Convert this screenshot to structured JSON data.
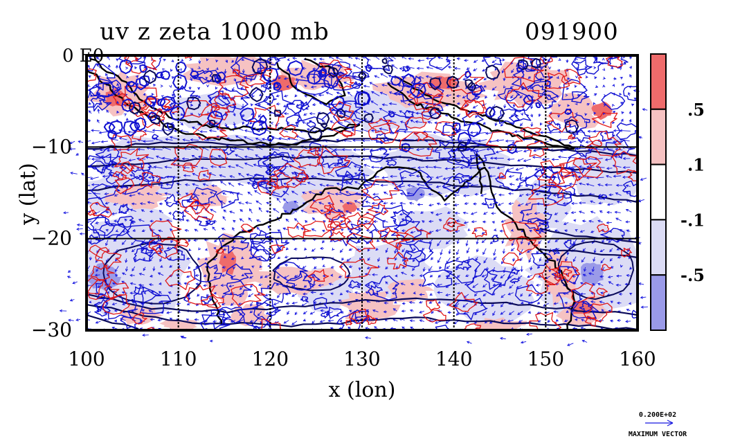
{
  "header": {
    "title": "uv z zeta 1000 mb",
    "timestamp": "091900",
    "corner_tag": "0 E0"
  },
  "chart_data": {
    "type": "heatmap",
    "subtype": "shaded-contour-with-vectors",
    "xlabel": "x (lon)",
    "ylabel": "y (lat)",
    "xlim": [
      100,
      160
    ],
    "ylim": [
      -30,
      0
    ],
    "xticks": [
      100,
      110,
      120,
      130,
      140,
      150,
      160
    ],
    "xtick_labels": [
      "100",
      "110",
      "120",
      "130",
      "140",
      "150",
      "160"
    ],
    "yticks": [
      0,
      -10,
      -20,
      -30
    ],
    "ytick_labels": [
      "0",
      "−10",
      "−20",
      "−30"
    ],
    "grid": true,
    "colorbar": {
      "position": "right",
      "levels_labels": [
        ".5",
        ".1",
        "-.1",
        "-.5"
      ],
      "bands": [
        {
          "color": "#ee6b6b"
        },
        {
          "color": "#f6c2c2"
        },
        {
          "color": "#ffffff"
        },
        {
          "color": "#dcdcf5"
        },
        {
          "color": "#9a9ae8"
        }
      ]
    },
    "contour_colors": {
      "height": "#0a0a5a",
      "coast": "#000000",
      "positive_zeta": "#e01818",
      "negative_zeta": "#1010d0",
      "vectors": "#1515e0"
    },
    "vector_legend": {
      "value": "0.200E+02",
      "label": "MAXIMUM VECTOR"
    }
  }
}
